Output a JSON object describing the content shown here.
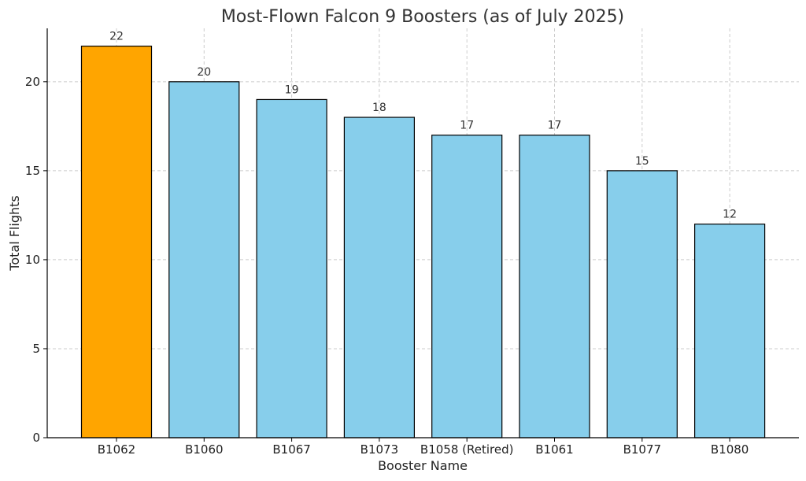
{
  "chart_data": {
    "type": "bar",
    "title": "Most-Flown Falcon 9 Boosters (as of July 2025)",
    "xlabel": "Booster Name",
    "ylabel": "Total Flights",
    "categories": [
      "B1062",
      "B1060",
      "B1067",
      "B1073",
      "B1058 (Retired)",
      "B1061",
      "B1077",
      "B1080"
    ],
    "values": [
      22,
      20,
      19,
      18,
      17,
      17,
      15,
      12
    ],
    "colors": [
      "#FFA500",
      "#87CEEB",
      "#87CEEB",
      "#87CEEB",
      "#87CEEB",
      "#87CEEB",
      "#87CEEB",
      "#87CEEB"
    ],
    "ylim": [
      0,
      23
    ],
    "yticks": [
      0,
      5,
      10,
      15,
      20
    ],
    "grid": true
  }
}
